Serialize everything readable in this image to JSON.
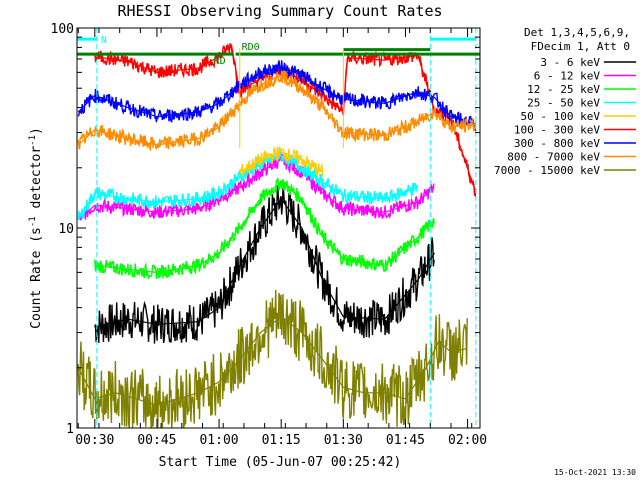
{
  "chart_data": {
    "type": "line",
    "title": "RHESSI Observing Summary Count Rates",
    "xlabel": "Start Time (05-Jun-07 00:25:42)",
    "ylabel": "Count Rate (s",
    "ylabel_sup": "-1",
    "ylabel_tail": " detector",
    "ylabel_tail_sup": "-1",
    "ylabel_close": ")",
    "footer_date": "15-Oct-2021 13:30",
    "y_scale": "log",
    "ylim": [
      1,
      100
    ],
    "xlim": [
      "00:25:42",
      "02:03:00"
    ],
    "x_ticks": [
      "00:30",
      "00:45",
      "01:00",
      "01:15",
      "01:30",
      "01:45",
      "02:00"
    ],
    "y_ticks": [
      "1",
      "10",
      "100"
    ],
    "legend_header": [
      "Det 1,3,4,5,6,9,",
      "FDecim 1, Att 0"
    ],
    "legend_placement": "right",
    "annotations": {
      "night": "N",
      "saa_dropout_1": "RD",
      "saa_dropout_2": "RD0"
    },
    "series": [
      {
        "name": "3 - 6 keV",
        "color": "#000000",
        "x": [
          "00:30",
          "00:38",
          "00:45",
          "00:55",
          "01:00",
          "01:05",
          "01:10",
          "01:15",
          "01:20",
          "01:25",
          "01:30",
          "01:40",
          "01:48",
          "01:52"
        ],
        "y": [
          3.2,
          3.5,
          3.3,
          3.4,
          4.0,
          6.5,
          10,
          14,
          10,
          5.5,
          3.6,
          3.5,
          5.5,
          7.5
        ]
      },
      {
        "name": "6 - 12 keV",
        "color": "#ff00ff",
        "x": [
          "00:26",
          "00:30",
          "00:38",
          "00:45",
          "00:55",
          "01:00",
          "01:05",
          "01:10",
          "01:15",
          "01:20",
          "01:25",
          "01:30",
          "01:40",
          "01:48",
          "01:52"
        ],
        "y": [
          11,
          13,
          12.5,
          12,
          12.5,
          14,
          16,
          19,
          22,
          19,
          15,
          12.5,
          12,
          13.5,
          16
        ]
      },
      {
        "name": "12 - 25 keV",
        "color": "#00ff00",
        "x": [
          "00:30",
          "00:38",
          "00:45",
          "00:55",
          "01:00",
          "01:05",
          "01:10",
          "01:15",
          "01:20",
          "01:25",
          "01:30",
          "01:40",
          "01:48",
          "01:52"
        ],
        "y": [
          6.5,
          6.2,
          6.0,
          6.5,
          7.5,
          10,
          14,
          17,
          14,
          9,
          7,
          6.5,
          9,
          11
        ]
      },
      {
        "name": "25 - 50 keV",
        "color": "#00ffff",
        "x": [
          "00:26",
          "00:30",
          "00:38",
          "00:45",
          "00:55",
          "01:00",
          "01:05",
          "01:10",
          "01:15",
          "01:20",
          "01:25",
          "01:30",
          "01:40",
          "01:48"
        ],
        "y": [
          11,
          15,
          14,
          13.5,
          14,
          15,
          18,
          21,
          23,
          20,
          17,
          14.5,
          14,
          16
        ]
      },
      {
        "name": "50 - 100 keV",
        "color": "#ffcc00",
        "x": [
          "01:05",
          "01:10",
          "01:15",
          "01:20",
          "01:25"
        ],
        "y": [
          19,
          22,
          24,
          22,
          19
        ]
      },
      {
        "name": "100 - 300 keV",
        "color": "#ff0000",
        "x": [
          "00:30",
          "00:38",
          "00:45",
          "00:55",
          "01:00",
          "01:03",
          "01:05",
          "01:10",
          "01:15",
          "01:20",
          "01:25",
          "01:30",
          "01:31",
          "01:40",
          "01:48",
          "01:52",
          "01:56",
          "02:02"
        ],
        "y": [
          72,
          68,
          60,
          63,
          72,
          82,
          48,
          56,
          62,
          55,
          46,
          38,
          71,
          69,
          73,
          39,
          35,
          15
        ]
      },
      {
        "name": "300 - 800 keV",
        "color": "#0000ff",
        "x": [
          "00:26",
          "00:30",
          "00:38",
          "00:45",
          "00:55",
          "01:00",
          "01:05",
          "01:10",
          "01:15",
          "01:20",
          "01:25",
          "01:30",
          "01:40",
          "01:48",
          "01:52",
          "01:56",
          "02:02"
        ],
        "y": [
          38,
          46,
          40,
          36,
          38,
          42,
          52,
          60,
          64,
          58,
          50,
          44,
          42,
          48,
          45,
          36,
          33
        ]
      },
      {
        "name": "800 - 7000 keV",
        "color": "#ff8c00",
        "x": [
          "00:26",
          "00:30",
          "00:38",
          "00:45",
          "00:55",
          "01:00",
          "01:05",
          "01:10",
          "01:15",
          "01:20",
          "01:25",
          "01:30",
          "01:40",
          "01:48",
          "01:52",
          "01:56",
          "02:02"
        ],
        "y": [
          26,
          31,
          28,
          26,
          28,
          32,
          42,
          52,
          58,
          50,
          40,
          30,
          29,
          34,
          38,
          32,
          33
        ]
      },
      {
        "name": "7000 - 15000 keV",
        "color": "#808000",
        "x": [
          "00:26",
          "00:30",
          "00:35",
          "00:40",
          "00:45",
          "00:50",
          "00:55",
          "01:00",
          "01:05",
          "01:10",
          "01:15",
          "01:20",
          "01:25",
          "01:30",
          "01:35",
          "01:40",
          "01:45",
          "01:50",
          "01:53",
          "01:56",
          "02:00"
        ],
        "y": [
          2.0,
          1.4,
          1.5,
          1.4,
          1.3,
          1.4,
          1.5,
          1.7,
          2.2,
          3.0,
          3.6,
          3.0,
          2.2,
          1.6,
          1.5,
          1.5,
          1.4,
          2.0,
          2.7,
          2.4,
          2.5
        ]
      }
    ]
  }
}
